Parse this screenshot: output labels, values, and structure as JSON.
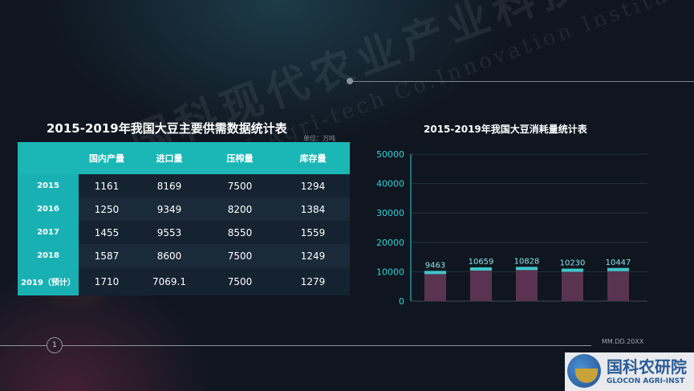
{
  "watermark": {
    "cn": "国科现代农业产业科技创新研究院",
    "en": "GLOCON Agri-tech Co.Innovation Institute"
  },
  "footer": {
    "page_number": "1",
    "date": "MM.DD.20XX"
  },
  "table": {
    "title": "2015-2019年我国大豆主要供需数据统计表",
    "unit": "单位：万吨",
    "headers": [
      "",
      "国内产量",
      "进口量",
      "压榨量",
      "库存量"
    ],
    "rows": [
      {
        "year": "2015",
        "cells": [
          "1161",
          "8169",
          "7500",
          "1294"
        ]
      },
      {
        "year": "2016",
        "cells": [
          "1250",
          "9349",
          "8200",
          "1384"
        ]
      },
      {
        "year": "2017",
        "cells": [
          "1455",
          "9553",
          "8550",
          "1559"
        ]
      },
      {
        "year": "2018",
        "cells": [
          "1587",
          "8600",
          "7500",
          "1249"
        ]
      },
      {
        "year": "2019（预计）",
        "cells": [
          "1710",
          "7069.1",
          "7500",
          "1279"
        ]
      }
    ]
  },
  "chart_data": {
    "type": "bar",
    "title": "2015-2019年我国大豆消耗量统计表",
    "values": [
      9463,
      10659,
      10828,
      10230,
      10447
    ],
    "ylim": [
      0,
      50000
    ],
    "yticks": [
      0,
      10000,
      20000,
      30000,
      40000,
      50000
    ],
    "grid": true,
    "colors": {
      "bar": "#5a3350",
      "cap": "#3ec6c9",
      "axis": "#2fd2d8",
      "label": "#8fe3e6"
    }
  },
  "logo": {
    "cn": "国科农研院",
    "en": "GLOCON AGRI-INST"
  }
}
